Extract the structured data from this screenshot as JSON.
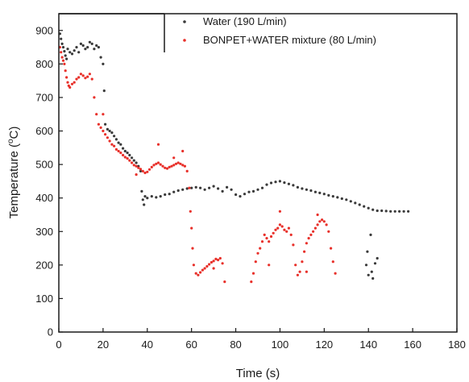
{
  "chart_data": {
    "type": "scatter",
    "xlabel": "Time (s)",
    "ylabel_main": "Temperature (",
    "ylabel_sup": "o",
    "ylabel_end": "C)",
    "xlim": [
      0,
      180
    ],
    "ylim": [
      0,
      950
    ],
    "x_ticks": [
      0,
      20,
      40,
      60,
      80,
      100,
      120,
      140,
      160,
      180
    ],
    "y_ticks": [
      0,
      100,
      200,
      300,
      400,
      500,
      600,
      700,
      800,
      900
    ],
    "legend_position": "top-right",
    "grid": false,
    "series": [
      {
        "name": "Water (190 L/min)",
        "color": "#3a3a3a",
        "points": [
          [
            0.5,
            890
          ],
          [
            1,
            875
          ],
          [
            1.5,
            860
          ],
          [
            2,
            850
          ],
          [
            2.5,
            838
          ],
          [
            3,
            825
          ],
          [
            3.5,
            815
          ],
          [
            4,
            845
          ],
          [
            5,
            835
          ],
          [
            6,
            830
          ],
          [
            7,
            840
          ],
          [
            8,
            850
          ],
          [
            9,
            835
          ],
          [
            10,
            860
          ],
          [
            11,
            855
          ],
          [
            12,
            845
          ],
          [
            13,
            850
          ],
          [
            14,
            865
          ],
          [
            15,
            860
          ],
          [
            16,
            845
          ],
          [
            17,
            855
          ],
          [
            18,
            850
          ],
          [
            19,
            820
          ],
          [
            20,
            800
          ],
          [
            20.5,
            720
          ],
          [
            21,
            620
          ],
          [
            22,
            605
          ],
          [
            23,
            600
          ],
          [
            24,
            595
          ],
          [
            25,
            585
          ],
          [
            26,
            575
          ],
          [
            27,
            565
          ],
          [
            28,
            560
          ],
          [
            29,
            548
          ],
          [
            30,
            540
          ],
          [
            31,
            535
          ],
          [
            32,
            528
          ],
          [
            33,
            520
          ],
          [
            34,
            512
          ],
          [
            35,
            505
          ],
          [
            36,
            495
          ],
          [
            37,
            480
          ],
          [
            37.5,
            420
          ],
          [
            38,
            395
          ],
          [
            38.5,
            380
          ],
          [
            39,
            405
          ],
          [
            40,
            400
          ],
          [
            42,
            405
          ],
          [
            44,
            402
          ],
          [
            46,
            405
          ],
          [
            48,
            410
          ],
          [
            50,
            412
          ],
          [
            52,
            418
          ],
          [
            54,
            422
          ],
          [
            56,
            425
          ],
          [
            58,
            428
          ],
          [
            60,
            430
          ],
          [
            62,
            432
          ],
          [
            64,
            430
          ],
          [
            66,
            425
          ],
          [
            68,
            430
          ],
          [
            70,
            435
          ],
          [
            72,
            428
          ],
          [
            74,
            420
          ],
          [
            76,
            432
          ],
          [
            78,
            425
          ],
          [
            80,
            410
          ],
          [
            82,
            405
          ],
          [
            84,
            412
          ],
          [
            86,
            418
          ],
          [
            88,
            420
          ],
          [
            90,
            425
          ],
          [
            92,
            430
          ],
          [
            94,
            440
          ],
          [
            96,
            445
          ],
          [
            98,
            448
          ],
          [
            100,
            450
          ],
          [
            102,
            446
          ],
          [
            104,
            442
          ],
          [
            106,
            438
          ],
          [
            108,
            432
          ],
          [
            110,
            428
          ],
          [
            112,
            425
          ],
          [
            114,
            422
          ],
          [
            116,
            418
          ],
          [
            118,
            415
          ],
          [
            120,
            412
          ],
          [
            122,
            408
          ],
          [
            124,
            405
          ],
          [
            126,
            402
          ],
          [
            128,
            398
          ],
          [
            130,
            395
          ],
          [
            132,
            390
          ],
          [
            134,
            385
          ],
          [
            136,
            380
          ],
          [
            138,
            375
          ],
          [
            140,
            370
          ],
          [
            142,
            365
          ],
          [
            144,
            362
          ],
          [
            146,
            362
          ],
          [
            148,
            361
          ],
          [
            150,
            360
          ],
          [
            152,
            360
          ],
          [
            154,
            360
          ],
          [
            156,
            360
          ],
          [
            158,
            360
          ],
          [
            139,
            200
          ],
          [
            140,
            170
          ],
          [
            141,
            290
          ],
          [
            142,
            160
          ],
          [
            143,
            205
          ],
          [
            144,
            220
          ],
          [
            139.5,
            240
          ],
          [
            141.5,
            180
          ]
        ]
      },
      {
        "name": "BONPET+WATER mixture (80 L/min)",
        "color": "#e8302a",
        "points": [
          [
            0.5,
            850
          ],
          [
            1,
            835
          ],
          [
            1.5,
            820
          ],
          [
            2,
            810
          ],
          [
            2.5,
            800
          ],
          [
            3,
            780
          ],
          [
            3.5,
            760
          ],
          [
            4,
            745
          ],
          [
            4.5,
            735
          ],
          [
            5,
            730
          ],
          [
            6,
            740
          ],
          [
            7,
            745
          ],
          [
            8,
            755
          ],
          [
            9,
            760
          ],
          [
            10,
            770
          ],
          [
            11,
            765
          ],
          [
            12,
            758
          ],
          [
            13,
            762
          ],
          [
            14,
            770
          ],
          [
            15,
            755
          ],
          [
            16,
            700
          ],
          [
            17,
            650
          ],
          [
            18,
            620
          ],
          [
            19,
            610
          ],
          [
            20,
            600
          ],
          [
            21,
            590
          ],
          [
            22,
            580
          ],
          [
            23,
            570
          ],
          [
            24,
            560
          ],
          [
            25,
            555
          ],
          [
            26,
            545
          ],
          [
            27,
            540
          ],
          [
            28,
            535
          ],
          [
            29,
            528
          ],
          [
            30,
            522
          ],
          [
            31,
            518
          ],
          [
            32,
            512
          ],
          [
            33,
            505
          ],
          [
            34,
            498
          ],
          [
            35,
            495
          ],
          [
            36,
            490
          ],
          [
            37,
            486
          ],
          [
            38,
            480
          ],
          [
            39,
            475
          ],
          [
            40,
            478
          ],
          [
            41,
            485
          ],
          [
            42,
            492
          ],
          [
            43,
            498
          ],
          [
            44,
            502
          ],
          [
            45,
            505
          ],
          [
            46,
            500
          ],
          [
            47,
            495
          ],
          [
            48,
            490
          ],
          [
            49,
            488
          ],
          [
            50,
            492
          ],
          [
            51,
            495
          ],
          [
            52,
            498
          ],
          [
            53,
            502
          ],
          [
            54,
            505
          ],
          [
            55,
            502
          ],
          [
            56,
            498
          ],
          [
            57,
            495
          ],
          [
            58,
            480
          ],
          [
            59,
            430
          ],
          [
            59.5,
            360
          ],
          [
            60,
            310
          ],
          [
            60.5,
            250
          ],
          [
            61,
            200
          ],
          [
            62,
            175
          ],
          [
            63,
            170
          ],
          [
            64,
            178
          ],
          [
            65,
            185
          ],
          [
            66,
            190
          ],
          [
            67,
            196
          ],
          [
            68,
            202
          ],
          [
            69,
            208
          ],
          [
            70,
            212
          ],
          [
            71,
            218
          ],
          [
            72,
            215
          ],
          [
            73,
            220
          ],
          [
            74,
            205
          ],
          [
            75,
            150
          ],
          [
            87,
            150
          ],
          [
            88,
            175
          ],
          [
            89,
            210
          ],
          [
            90,
            235
          ],
          [
            91,
            250
          ],
          [
            92,
            270
          ],
          [
            93,
            290
          ],
          [
            94,
            280
          ],
          [
            95,
            270
          ],
          [
            96,
            285
          ],
          [
            97,
            295
          ],
          [
            98,
            305
          ],
          [
            99,
            310
          ],
          [
            100,
            320
          ],
          [
            101,
            315
          ],
          [
            102,
            305
          ],
          [
            103,
            300
          ],
          [
            104,
            310
          ],
          [
            105,
            290
          ],
          [
            106,
            260
          ],
          [
            107,
            200
          ],
          [
            108,
            170
          ],
          [
            109,
            180
          ],
          [
            110,
            210
          ],
          [
            111,
            240
          ],
          [
            112,
            265
          ],
          [
            113,
            280
          ],
          [
            114,
            290
          ],
          [
            115,
            300
          ],
          [
            116,
            310
          ],
          [
            117,
            320
          ],
          [
            118,
            330
          ],
          [
            119,
            335
          ],
          [
            120,
            330
          ],
          [
            121,
            320
          ],
          [
            122,
            300
          ],
          [
            123,
            250
          ],
          [
            124,
            210
          ],
          [
            125,
            175
          ],
          [
            20,
            650
          ],
          [
            35,
            470
          ],
          [
            45,
            560
          ],
          [
            52,
            520
          ],
          [
            56,
            540
          ],
          [
            100,
            360
          ],
          [
            95,
            200
          ],
          [
            117,
            350
          ],
          [
            112,
            180
          ],
          [
            70,
            190
          ]
        ]
      }
    ]
  }
}
